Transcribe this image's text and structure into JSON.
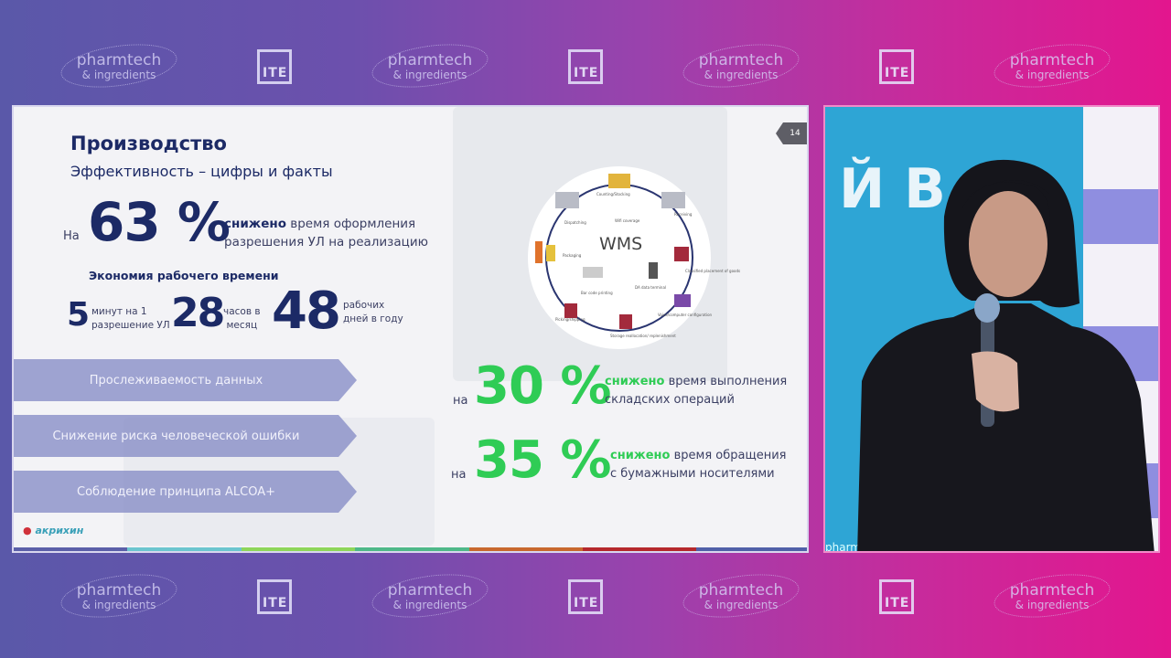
{
  "banner": {
    "pharmtech_line1": "pharmtech",
    "pharmtech_line2": "& ingredients",
    "ite": "ITE"
  },
  "slide": {
    "page_number": "14",
    "title": "Производство",
    "subtitle": "Эффективность – цифры и факты",
    "stat_main": {
      "prefix": "На",
      "value": "63 %",
      "bold": "снижено",
      "line1_rest": " время оформления",
      "line2": "разрешения УЛ на реализацию"
    },
    "savings_heading": "Экономия рабочего времени",
    "savings": [
      {
        "value": "5",
        "line1": "минут на 1",
        "line2": "разрешение УЛ"
      },
      {
        "value": "28",
        "line1": "часов в",
        "line2": "месяц"
      },
      {
        "value": "48",
        "line1": "рабочих",
        "line2": "дней в году"
      }
    ],
    "bands": [
      "Прослеживаемость данных",
      "Снижение риска человеческой ошибки",
      "Соблюдение принципа ALCOA+"
    ],
    "wms": {
      "center": "WMS",
      "labels": [
        "Counting/Stocking",
        "Receiving",
        "Dispatching",
        "Wifi coverage",
        "Packaging",
        "Classified placement of goods",
        "Bar code printing",
        "DA data terminal",
        "Voice/computer configuration",
        "Storage reallocation/ replenishment",
        "Picking/shipping"
      ]
    },
    "stats_green": [
      {
        "prefix": "на",
        "value": "30 %",
        "bold": "снижено",
        "line1_rest": " время выполнения",
        "line2": "складских операций"
      },
      {
        "prefix": "на",
        "value": "35 %",
        "bold": "снижено",
        "line1_rest": " время обращения",
        "line2": "с бумажными носителями"
      }
    ],
    "company_logo": "акрихин",
    "footer_colors": [
      "#5b5fa8",
      "#6cc5cf",
      "#8ed65a",
      "#4fb889",
      "#c8682e",
      "#b5282c",
      "#5060a8"
    ]
  },
  "video": {
    "backdrop_text": "Й В",
    "badge_text": "pharm"
  },
  "colors": {
    "navy": "#1c2a66",
    "green": "#2fcc55",
    "backdrop": "#2ea5d5"
  }
}
